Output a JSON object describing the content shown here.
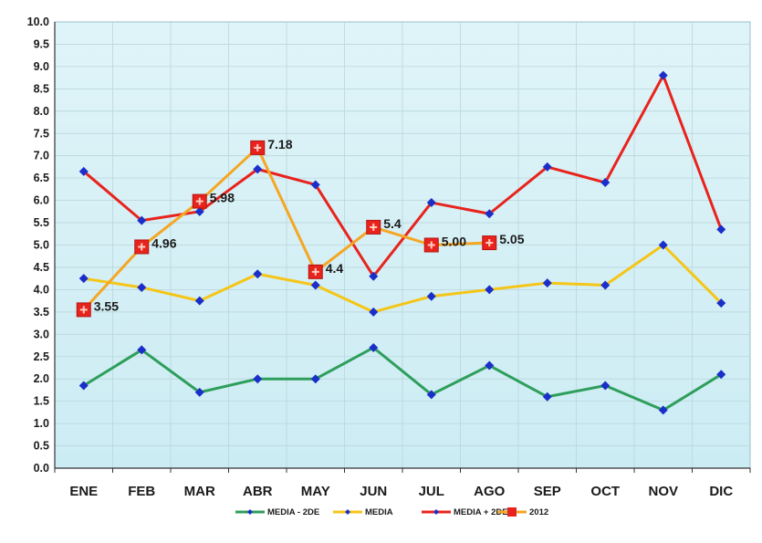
{
  "chart_data": {
    "type": "line",
    "categories": [
      "ENE",
      "FEB",
      "MAR",
      "ABR",
      "MAY",
      "JUN",
      "JUL",
      "AGO",
      "SEP",
      "OCT",
      "NOV",
      "DIC"
    ],
    "ylim": [
      0,
      10
    ],
    "y_ticks": [
      "0.0",
      "0.5",
      "1.0",
      "1.5",
      "2.0",
      "2.5",
      "3.0",
      "3.5",
      "4.0",
      "4.5",
      "5.0",
      "5.5",
      "6.0",
      "6.5",
      "7.0",
      "7.5",
      "8.0",
      "8.5",
      "9.0",
      "9.5",
      "10.0"
    ],
    "grid": true,
    "legend_position": "bottom",
    "series": [
      {
        "name": "MEDIA - 2DE",
        "color": "#2e9e5b",
        "values": [
          1.85,
          2.65,
          1.7,
          2.0,
          2.0,
          2.7,
          1.65,
          2.3,
          1.6,
          1.85,
          1.3,
          2.1
        ]
      },
      {
        "name": "MEDIA",
        "color": "#f5c518",
        "values": [
          4.25,
          4.05,
          3.75,
          4.35,
          4.1,
          3.5,
          3.85,
          4.0,
          4.15,
          4.1,
          5.0,
          3.7
        ]
      },
      {
        "name": "MEDIA + 2DE",
        "color": "#e8231d",
        "values": [
          6.65,
          5.55,
          5.75,
          6.7,
          6.35,
          4.3,
          5.95,
          5.7,
          6.75,
          6.4,
          8.8,
          5.35
        ]
      },
      {
        "name": "2012",
        "color": "#f5a623",
        "marker_color": "#e8231d",
        "values": [
          3.55,
          4.96,
          5.98,
          7.18,
          4.4,
          5.4,
          5.0,
          5.05,
          null,
          null,
          null,
          null
        ],
        "labels": [
          "3.55",
          "4.96",
          "5.98",
          "7.18",
          "4.4",
          "5.4",
          "5.00",
          "5.05",
          null,
          null,
          null,
          null
        ]
      }
    ]
  }
}
